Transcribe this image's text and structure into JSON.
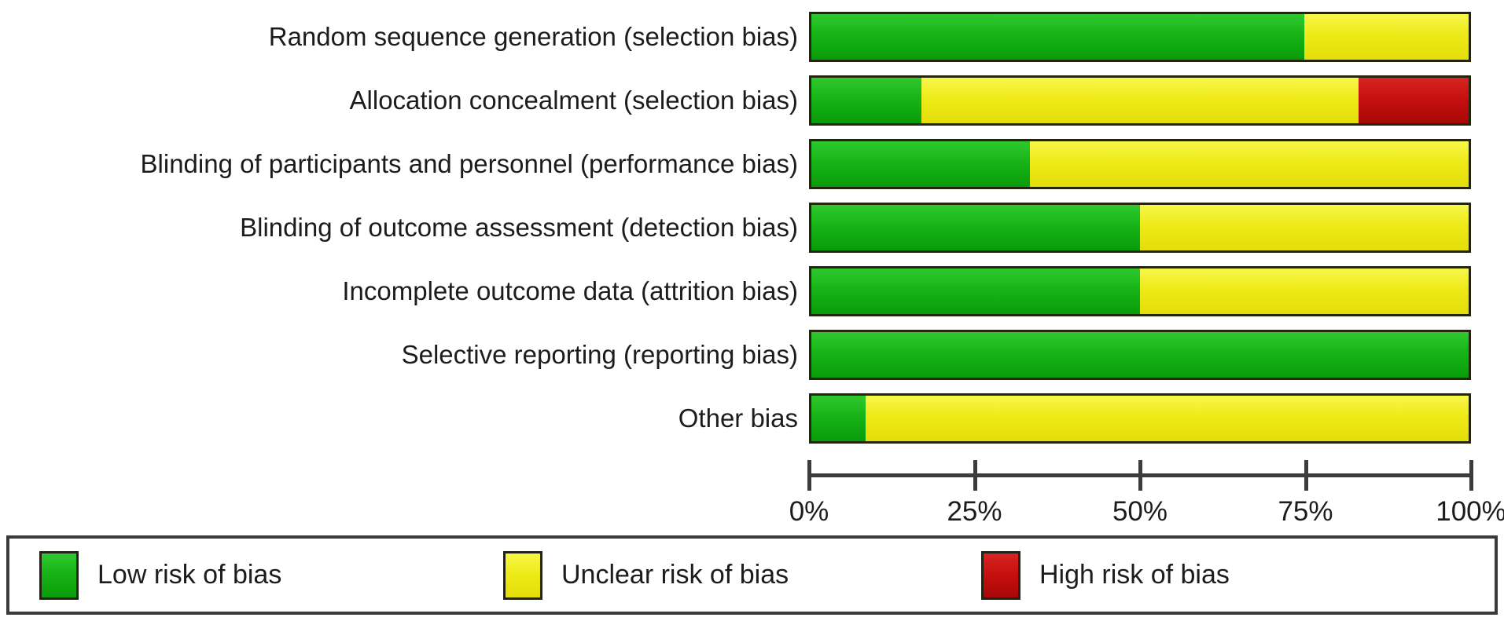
{
  "chart_data": {
    "type": "bar",
    "variant": "stacked-horizontal",
    "title": "",
    "xlabel": "",
    "ylabel": "",
    "xlim": [
      0,
      100
    ],
    "grid": false,
    "legend_position": "bottom-boxed",
    "categories": [
      "Random sequence generation (selection bias)",
      "Allocation concealment (selection bias)",
      "Blinding of participants and personnel (performance bias)",
      "Blinding of outcome assessment (detection bias)",
      "Incomplete outcome data (attrition bias)",
      "Selective reporting (reporting bias)",
      "Other bias"
    ],
    "series": [
      {
        "key": "low",
        "name": "Low risk of bias",
        "color": "#17b417",
        "color_light": "#2fc92f",
        "color_dark": "#0a9c0a",
        "values": [
          75,
          16.7,
          33.3,
          50,
          50,
          100,
          8.3
        ]
      },
      {
        "key": "unclear",
        "name": "Unclear risk of bias",
        "color": "#eeea18",
        "color_light": "#f7f74a",
        "color_dark": "#e4dd0a",
        "values": [
          25,
          66.6,
          66.7,
          50,
          50,
          0,
          91.7
        ]
      },
      {
        "key": "high",
        "name": "High risk of bias",
        "color": "#c81010",
        "color_light": "#d62424",
        "color_dark": "#a80707",
        "values": [
          0,
          16.7,
          0,
          0,
          0,
          0,
          0
        ]
      }
    ],
    "x_ticks": [
      {
        "pos": 0,
        "label": "0%"
      },
      {
        "pos": 25,
        "label": "25%"
      },
      {
        "pos": 50,
        "label": "50%"
      },
      {
        "pos": 75,
        "label": "75%"
      },
      {
        "pos": 100,
        "label": "100%"
      }
    ]
  },
  "legend": {
    "items": [
      {
        "key": "low",
        "label": "Low risk of bias"
      },
      {
        "key": "unclear",
        "label": "Unclear risk of bias"
      },
      {
        "key": "high",
        "label": "High risk of bias"
      }
    ]
  }
}
